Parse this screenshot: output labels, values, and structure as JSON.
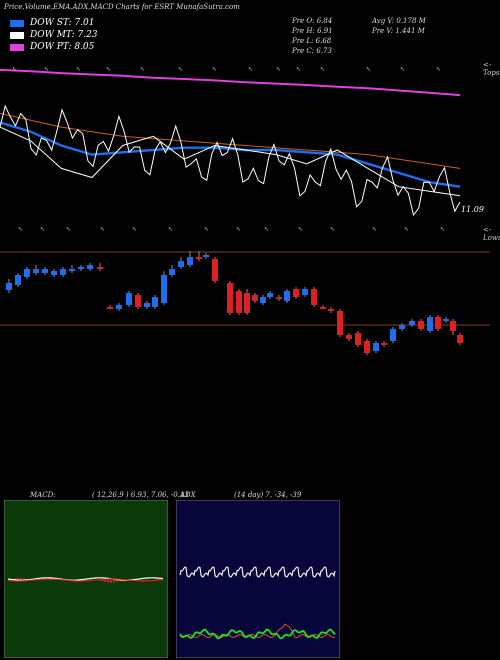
{
  "header": {
    "title": "Price,Volume,EMA,ADX,MACD Charts for ESRT MunafaSutra.com"
  },
  "legend": [
    {
      "label": "DOW ST: 7.01",
      "color": "#1e6ff0"
    },
    {
      "label": "DOW MT: 7.23",
      "color": "#ffffff"
    },
    {
      "label": "DOW PT: 8.05",
      "color": "#e040e0"
    }
  ],
  "stats": {
    "prev_open": "Pre   O: 6.84",
    "prev_high": "Pre   H: 6.91",
    "prev_low": "Pre   L: 6.68",
    "prev_close": "Pre   C: 6.73",
    "avg_volume": "Avg V: 0.178  M",
    "prev_volume": "Pre   V: 1.441 M"
  },
  "labels": {
    "tops": "<-Tops",
    "lows": "<-Lows",
    "price_marker": "11.09"
  },
  "macd": {
    "title": "MACD:",
    "params": "( 12,26,9 ) 6.93, 7.06, -0.13"
  },
  "adx": {
    "title": "ADX",
    "params": "(14  day) 7, -34, -39"
  },
  "colors": {
    "up": "#1e6ff0",
    "down": "#e02020",
    "ema_long": "#c86020",
    "ema_pt": "#e040e0",
    "macd_bg": "#0a3a0a",
    "adx_bg": "#06063a"
  },
  "chart_data": [
    {
      "type": "line",
      "series": [
        {
          "values": [
            9.55,
            9.52,
            9.48,
            9.45,
            9.42,
            9.38,
            9.35,
            9.32,
            9.28,
            9.25,
            9.22,
            9.18,
            9.15,
            9.1,
            9.05,
            9.0
          ]
        },
        {
          "values": [
            8.6,
            8.45,
            8.3,
            8.2,
            8.1,
            8.05,
            8.0,
            7.95,
            7.9,
            7.85,
            7.8,
            7.75,
            7.7,
            7.6,
            7.5,
            7.4
          ]
        },
        {
          "values": [
            8.4,
            8.2,
            7.9,
            7.7,
            7.75,
            7.8,
            7.85,
            7.85,
            7.8,
            7.8,
            7.75,
            7.7,
            7.5,
            7.3,
            7.1,
            7.0
          ]
        },
        {
          "values": [
            8.3,
            8.0,
            7.4,
            7.2,
            7.9,
            8.1,
            7.6,
            7.9,
            7.8,
            7.7,
            7.5,
            7.8,
            7.4,
            7.0,
            6.9,
            6.8
          ]
        }
      ]
    },
    {
      "type": "bar",
      "note": "candles",
      "up_color": "#1e6ff0",
      "down_color": "#e02020"
    }
  ]
}
